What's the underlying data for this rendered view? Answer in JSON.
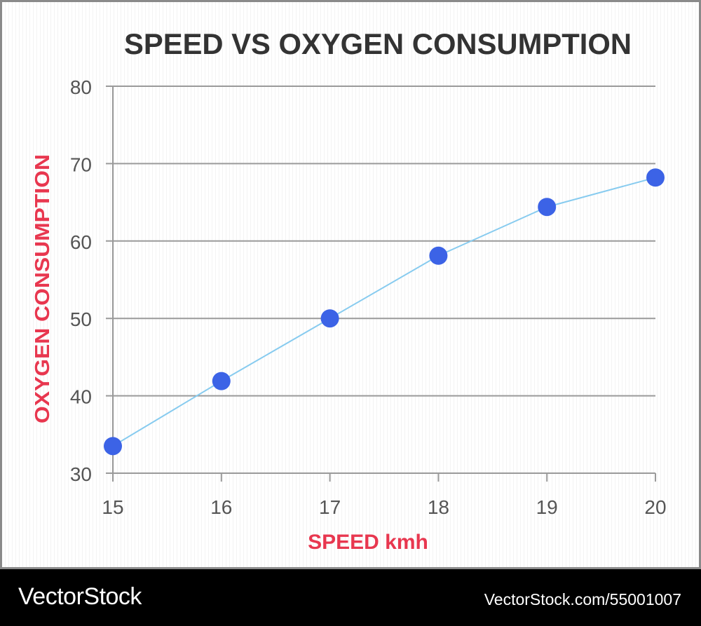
{
  "chart_data": {
    "type": "line",
    "title": "SPEED VS OXYGEN CONSUMPTION",
    "xlabel": "SPEED kmh",
    "ylabel": "OXYGEN CONSUMPTION",
    "x": [
      15,
      16,
      17,
      18,
      19,
      20
    ],
    "series": [
      {
        "name": "Oxygen consumption",
        "values": [
          33.5,
          41.9,
          50,
          58.1,
          64.4,
          68.2
        ]
      }
    ],
    "xlim": [
      15,
      20
    ],
    "ylim": [
      30,
      80
    ],
    "xticks": [
      "15",
      "16",
      "17",
      "18",
      "19",
      "20"
    ],
    "yticks": [
      "30",
      "40",
      "50",
      "60",
      "70",
      "80"
    ],
    "grid": true
  },
  "colors": {
    "title": "#333333",
    "axis_label": "#e8374f",
    "line": "#87cbef",
    "marker": "#3c63e6",
    "grid": "#9a9a9a",
    "tick_text": "#555555"
  },
  "footer": {
    "brand": "VectorStock",
    "image_id": "VectorStock.com/55001007"
  }
}
